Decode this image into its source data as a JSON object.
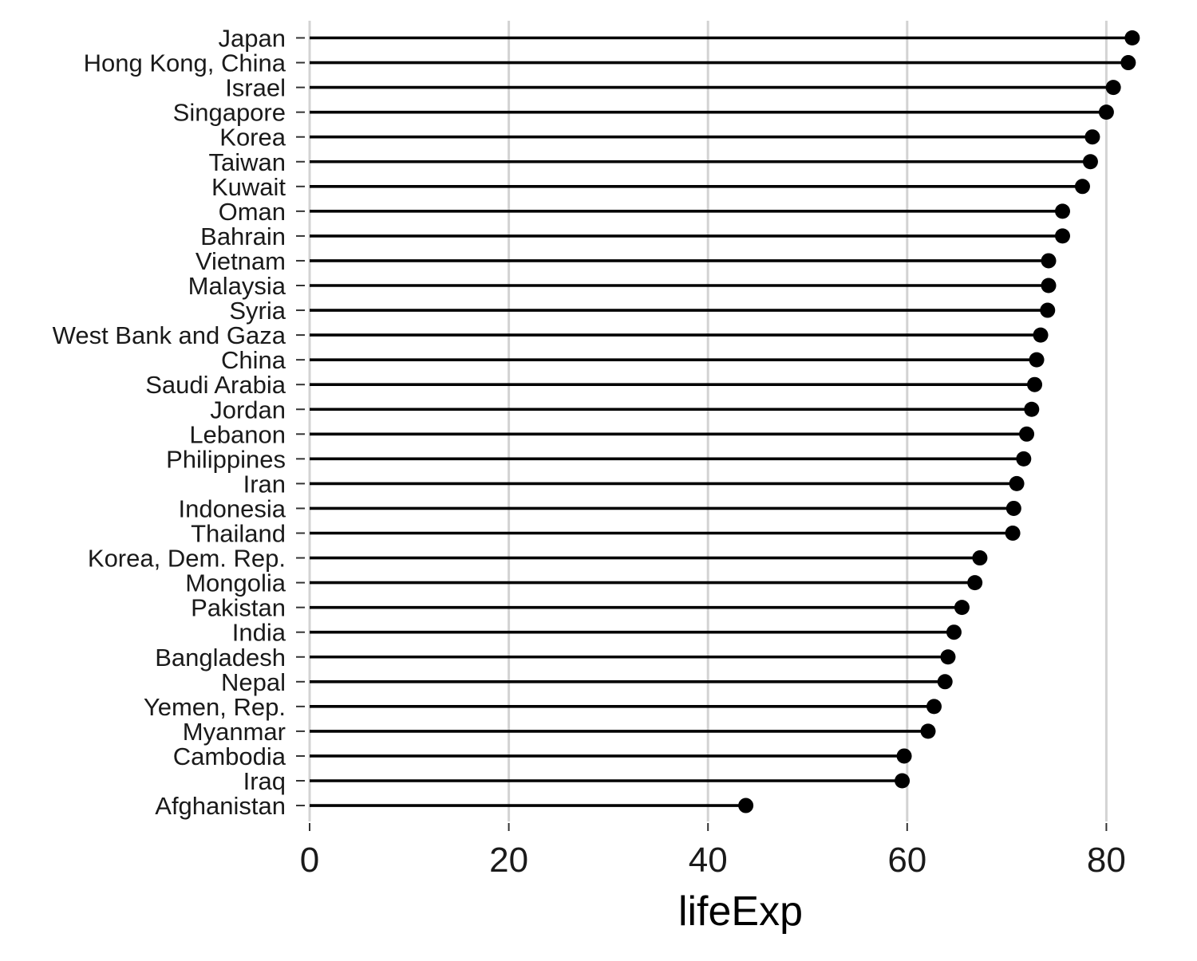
{
  "chart_data": {
    "type": "lollipop",
    "title": "",
    "xlabel": "lifeExp",
    "ylabel": "",
    "xlim": [
      0,
      83.5
    ],
    "x_ticks": [
      0,
      20,
      40,
      60,
      80
    ],
    "grid": "vertical major gridlines",
    "legend": "none",
    "colors": {
      "point": "#000000",
      "stem": "#000000",
      "grid": "#d3d3d3",
      "tick_mark": "#333333",
      "background": "#ffffff"
    },
    "categories": [
      "Japan",
      "Hong Kong, China",
      "Israel",
      "Singapore",
      "Korea",
      "Taiwan",
      "Kuwait",
      "Oman",
      "Bahrain",
      "Vietnam",
      "Malaysia",
      "Syria",
      "West Bank and Gaza",
      "China",
      "Saudi Arabia",
      "Jordan",
      "Lebanon",
      "Philippines",
      "Iran",
      "Indonesia",
      "Thailand",
      "Korea, Dem. Rep.",
      "Mongolia",
      "Pakistan",
      "India",
      "Bangladesh",
      "Nepal",
      "Yemen, Rep.",
      "Myanmar",
      "Cambodia",
      "Iraq",
      "Afghanistan"
    ],
    "values": [
      82.6,
      82.2,
      80.7,
      80.0,
      78.6,
      78.4,
      77.6,
      75.6,
      75.6,
      74.2,
      74.2,
      74.1,
      73.4,
      73.0,
      72.8,
      72.5,
      72.0,
      71.7,
      71.0,
      70.7,
      70.6,
      67.3,
      66.8,
      65.5,
      64.7,
      64.1,
      63.8,
      62.7,
      62.1,
      59.7,
      59.5,
      43.8
    ]
  }
}
